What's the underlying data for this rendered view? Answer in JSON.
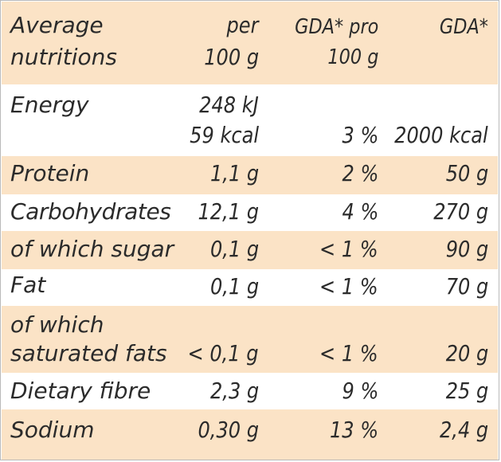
{
  "header": {
    "col1_line1": "Average",
    "col1_line2": "nutritions",
    "col2_line1": "per",
    "col2_line2": "100 g",
    "col3_line1": "GDA* pro",
    "col3_line2": "100 g",
    "col4_line1": "GDA*"
  },
  "rows": [
    {
      "label": "Energy",
      "per100_line1": "248 kJ",
      "per100_line2": "59 kcal",
      "gda_pct": "3 %",
      "gda": "2000 kcal"
    },
    {
      "label": "Protein",
      "per100": "1,1 g",
      "gda_pct": "2 %",
      "gda": "50 g"
    },
    {
      "label": "Carbohydrates",
      "per100": "12,1 g",
      "gda_pct": "4 %",
      "gda": "270 g"
    },
    {
      "label": "of which sugar",
      "per100": "0,1 g",
      "gda_pct": "< 1 %",
      "gda": "90 g"
    },
    {
      "label": "Fat",
      "per100": "0,1 g",
      "gda_pct": "< 1 %",
      "gda": "70 g"
    },
    {
      "label_line1": "of which",
      "label_line2": "saturated fats",
      "per100": "< 0,1 g",
      "gda_pct": "< 1 %",
      "gda": "20 g"
    },
    {
      "label": "Dietary fibre",
      "per100": "2,3 g",
      "gda_pct": "9 %",
      "gda": "25 g"
    },
    {
      "label": "Sodium",
      "per100": "0,30 g",
      "gda_pct": "13 %",
      "gda": "2,4 g"
    }
  ],
  "colors": {
    "band": "#fbe3c6",
    "text": "#2b2b2b",
    "border": "#b9b9b9"
  }
}
